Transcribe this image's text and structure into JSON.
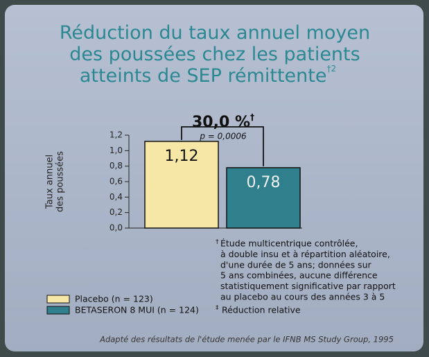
{
  "chart_data": {
    "type": "bar",
    "title": [
      "Réduction du taux annuel moyen",
      "des poussées chez les patients",
      "atteints de SEP rémittente"
    ],
    "title_note": "†2",
    "y_label": [
      "Taux annuel",
      "des poussées"
    ],
    "ylim": [
      0,
      1.2
    ],
    "yticks": [
      {
        "value": 0,
        "label": "0,0"
      },
      {
        "value": 0.2,
        "label": "0,2"
      },
      {
        "value": 0.4,
        "label": "0,4"
      },
      {
        "value": 0.6,
        "label": "0,6"
      },
      {
        "value": 0.8,
        "label": "0,8"
      },
      {
        "value": 1.0,
        "label": "1,0"
      },
      {
        "value": 1.2,
        "label": "1,2"
      }
    ],
    "series": [
      {
        "name": "Placebo (n = 123)",
        "color": "#f6e7a6",
        "values": [
          1.12
        ],
        "value_labels": [
          "1,12"
        ]
      },
      {
        "name": "BETASERON 8 MUI (n = 124)",
        "color": "#2f7f8c",
        "values": [
          0.78
        ],
        "value_labels": [
          "0,78"
        ]
      }
    ],
    "difference": {
      "label": "30,0 %",
      "mark": "†",
      "p": "p = 0,0006"
    },
    "notes": [
      {
        "symbol": "†",
        "lines": [
          "Étude multicentrique contrôlée,",
          "à double insu et à répartition aléatoire,",
          "d'une durée de 5 ans; données sur",
          "5 ans combinées, aucune différence",
          "statistiquement significative par rapport",
          "au placebo au cours des années 3 à 5"
        ]
      },
      {
        "symbol": "‡",
        "lines": [
          "Réduction relative"
        ]
      }
    ],
    "source": "Adapté des résultats de l'étude menée par le IFNB MS Study Group, 1995"
  }
}
